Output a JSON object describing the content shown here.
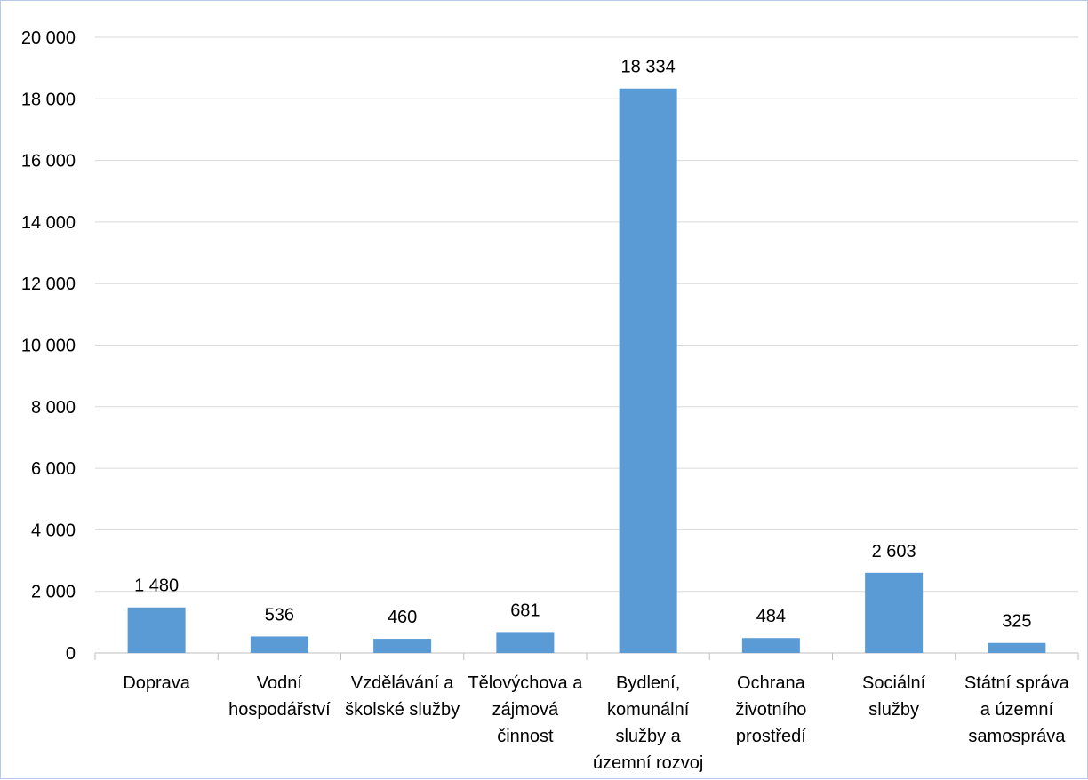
{
  "chart_data": {
    "type": "bar",
    "title": "",
    "xlabel": "",
    "ylabel": "",
    "categories": [
      [
        "Doprava"
      ],
      [
        "Vodní",
        "hospodářství"
      ],
      [
        "Vzdělávání a",
        "školské služby"
      ],
      [
        "Tělovýchova a",
        "zájmová",
        "činnost"
      ],
      [
        "Bydlení,",
        "komunální",
        "služby a",
        "územní rozvoj"
      ],
      [
        "Ochrana",
        "životního",
        "prostředí"
      ],
      [
        "Sociální",
        "služby"
      ],
      [
        "Státní správa",
        "a územní",
        "samospráva"
      ]
    ],
    "values": [
      1480,
      536,
      460,
      681,
      18334,
      484,
      2603,
      325
    ],
    "value_labels": [
      "1 480",
      "536",
      "460",
      "681",
      "18 334",
      "484",
      "2 603",
      "325"
    ],
    "ylim": [
      0,
      20000
    ],
    "yticks": [
      0,
      2000,
      4000,
      6000,
      8000,
      10000,
      12000,
      14000,
      16000,
      18000,
      20000
    ],
    "ytick_labels": [
      "0",
      "2 000",
      "4 000",
      "6 000",
      "8 000",
      "10 000",
      "12 000",
      "14 000",
      "16 000",
      "18 000",
      "20 000"
    ],
    "grid": true,
    "legend": "none",
    "colors": {
      "bar": "#5b9bd5",
      "grid": "#d9d9d9",
      "axis": "#bfbfbf"
    }
  }
}
